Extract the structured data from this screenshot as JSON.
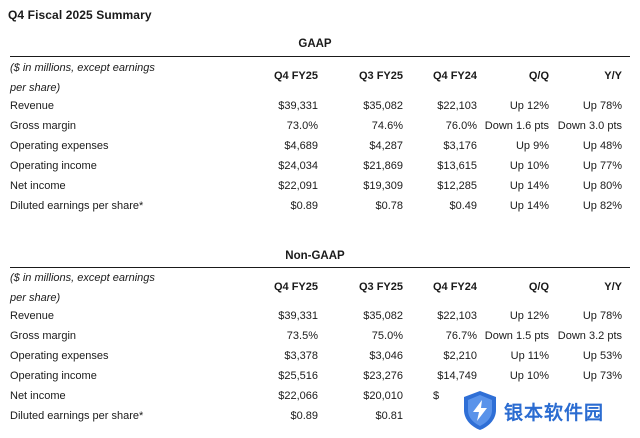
{
  "title": "Q4 Fiscal 2025 Summary",
  "units_note_line1": "($ in millions, except earnings",
  "units_note_line2": "per share)",
  "columns": [
    "Q4 FY25",
    "Q3 FY25",
    "Q4 FY24",
    "Q/Q",
    "Y/Y"
  ],
  "gaap": {
    "heading": "GAAP",
    "rows": [
      {
        "label": "Revenue",
        "q4fy25": "$39,331",
        "q3fy25": "$35,082",
        "q4fy24": "$22,103",
        "qq": "Up 12%",
        "yy": "Up 78%"
      },
      {
        "label": "Gross margin",
        "q4fy25": "73.0%",
        "q3fy25": "74.6%",
        "q4fy24": "76.0%",
        "qq": "Down 1.6 pts",
        "yy": "Down 3.0 pts"
      },
      {
        "label": "Operating expenses",
        "q4fy25": "$4,689",
        "q3fy25": "$4,287",
        "q4fy24": "$3,176",
        "qq": "Up 9%",
        "yy": "Up 48%"
      },
      {
        "label": "Operating income",
        "q4fy25": "$24,034",
        "q3fy25": "$21,869",
        "q4fy24": "$13,615",
        "qq": "Up 10%",
        "yy": "Up 77%"
      },
      {
        "label": "Net income",
        "q4fy25": "$22,091",
        "q3fy25": "$19,309",
        "q4fy24": "$12,285",
        "qq": "Up 14%",
        "yy": "Up 80%"
      },
      {
        "label": "Diluted earnings per share*",
        "q4fy25": "$0.89",
        "q3fy25": "$0.78",
        "q4fy24": "$0.49",
        "qq": "Up 14%",
        "yy": "Up 82%"
      }
    ]
  },
  "nongaap": {
    "heading": "Non-GAAP",
    "rows": [
      {
        "label": "Revenue",
        "q4fy25": "$39,331",
        "q3fy25": "$35,082",
        "q4fy24": "$22,103",
        "qq": "Up 12%",
        "yy": "Up 78%"
      },
      {
        "label": "Gross margin",
        "q4fy25": "73.5%",
        "q3fy25": "75.0%",
        "q4fy24": "76.7%",
        "qq": "Down 1.5 pts",
        "yy": "Down 3.2 pts"
      },
      {
        "label": "Operating expenses",
        "q4fy25": "$3,378",
        "q3fy25": "$3,046",
        "q4fy24": "$2,210",
        "qq": "Up 11%",
        "yy": "Up 53%"
      },
      {
        "label": "Operating income",
        "q4fy25": "$25,516",
        "q3fy25": "$23,276",
        "q4fy24": "$14,749",
        "qq": "Up 10%",
        "yy": "Up 73%"
      },
      {
        "label": "Net income",
        "q4fy25": "$22,066",
        "q3fy25": "$20,010",
        "q4fy24": "$",
        "qq": "",
        "yy": ""
      },
      {
        "label": "Diluted earnings per share*",
        "q4fy25": "$0.89",
        "q3fy25": "$0.81",
        "q4fy24": "",
        "qq": "",
        "yy": ""
      }
    ]
  },
  "watermark": {
    "text": "银本软件园",
    "color": "#2b6cd1"
  }
}
